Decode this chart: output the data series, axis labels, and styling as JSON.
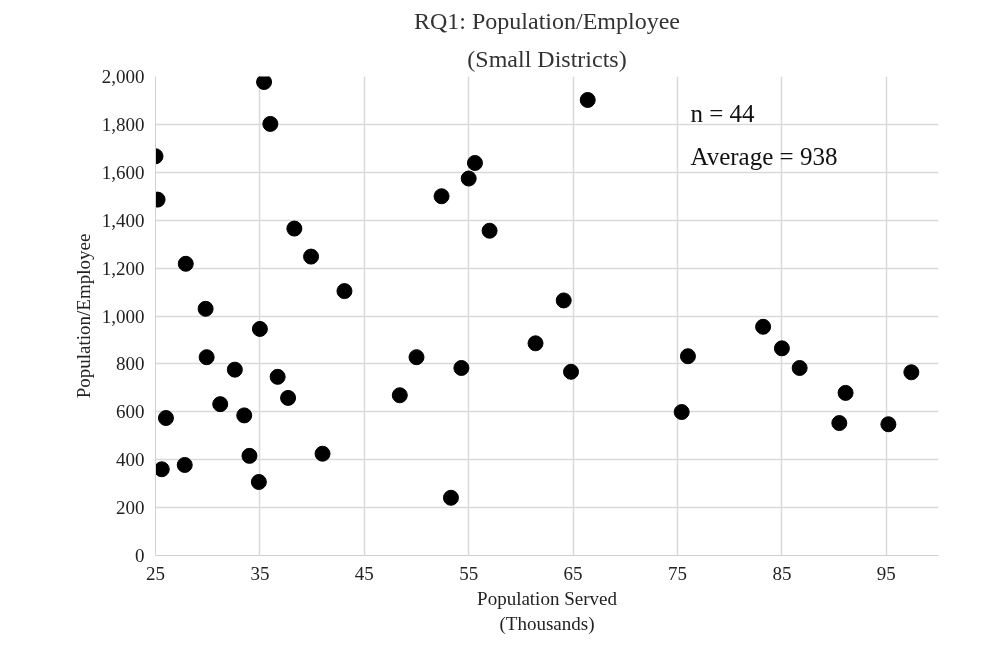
{
  "chart_data": {
    "type": "scatter",
    "title": "RQ1: Population/Employee",
    "subtitle": "(Small Districts)",
    "xlabel": "Population Served\n(Thousands)",
    "ylabel": "Population/Employee",
    "annotations": [
      "n = 44",
      "Average = 938"
    ],
    "x": [
      25.0,
      25.2,
      35.4,
      36.0,
      26.0,
      25.6,
      27.9,
      27.8,
      29.8,
      29.9,
      31.2,
      32.6,
      33.5,
      34.0,
      34.9,
      35.0,
      36.7,
      37.7,
      38.3,
      39.9,
      41.0,
      43.1,
      48.4,
      50.0,
      52.4,
      53.3,
      54.3,
      55.0,
      55.6,
      57.0,
      61.4,
      66.4,
      64.1,
      64.8,
      76.0,
      75.4,
      83.2,
      85.0,
      86.7,
      91.1,
      90.5,
      95.2,
      97.4
    ],
    "values": [
      1667,
      1486,
      1977,
      1802,
      574,
      360,
      1218,
      378,
      1030,
      828,
      632,
      776,
      585,
      416,
      307,
      946,
      746,
      658,
      1365,
      1248,
      425,
      1104,
      669,
      828,
      1500,
      241,
      783,
      1574,
      1639,
      1356,
      886,
      1902,
      1065,
      767,
      832,
      599,
      955,
      865,
      783,
      679,
      553,
      548,
      765
    ],
    "color": "#000000",
    "marker": "circle",
    "xlim": [
      25,
      100
    ],
    "xticks": [
      25,
      35,
      45,
      55,
      65,
      75,
      85,
      95
    ],
    "ylim": [
      0,
      2000
    ],
    "yticks": [
      {
        "value": 0,
        "label": "0"
      },
      {
        "value": 200,
        "label": "200"
      },
      {
        "value": 400,
        "label": "400"
      },
      {
        "value": 600,
        "label": "600"
      },
      {
        "value": 800,
        "label": "800"
      },
      {
        "value": 1000,
        "label": "1,000"
      },
      {
        "value": 1200,
        "label": "1,200"
      },
      {
        "value": 1400,
        "label": "1,400"
      },
      {
        "value": 1600,
        "label": "1,600"
      },
      {
        "value": 1800,
        "label": "1,800"
      },
      {
        "value": 2000,
        "label": "2,000"
      }
    ],
    "grid": true
  }
}
